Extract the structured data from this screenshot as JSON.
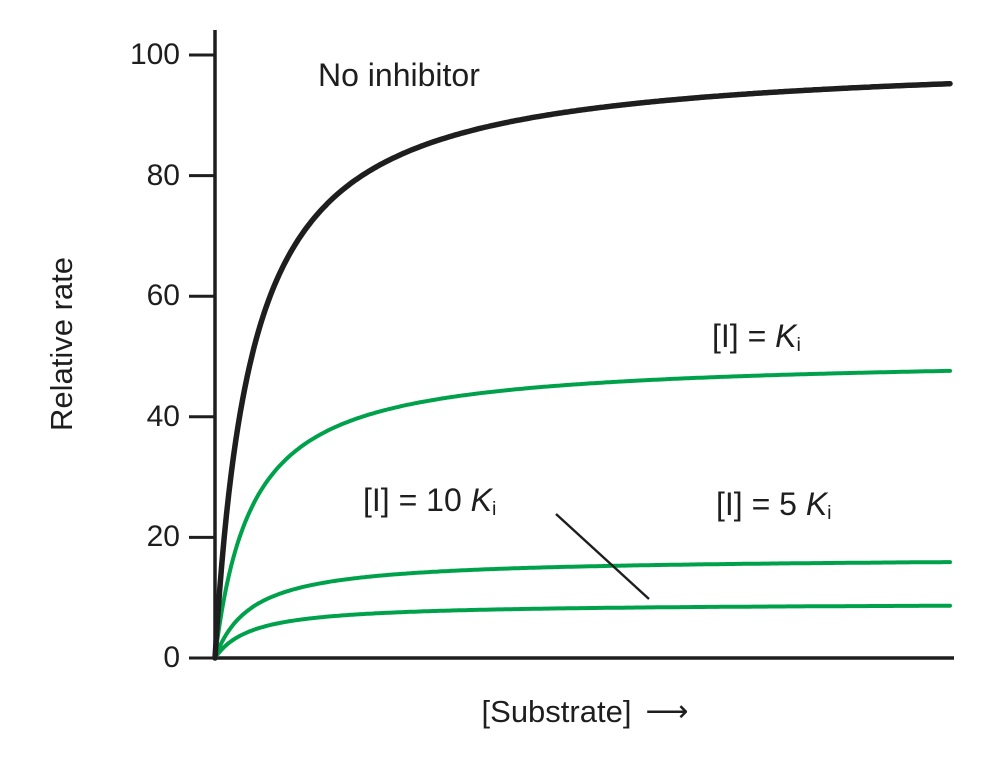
{
  "figure": {
    "background": "#ffffff",
    "axis_color": "#1e1e1e",
    "green": "#00a14b",
    "black": "#1e1e1e",
    "xlabel_arrow": "⟶"
  },
  "labels": {
    "no_inhibitor": "No inhibitor",
    "ki": {
      "prefix": "[I] = ",
      "sym": "K",
      "sub": "i"
    },
    "ki10": {
      "prefix": "[I] = 10 ",
      "sym": "K",
      "sub": "i"
    },
    "ki5": {
      "prefix": "[I] = 5 ",
      "sym": "K",
      "sub": "i"
    }
  },
  "chart_data": {
    "type": "line",
    "xlabel": "[Substrate]",
    "ylabel": "Relative rate",
    "ylim": [
      0,
      100
    ],
    "y_ticks": [
      0,
      20,
      40,
      60,
      80,
      100
    ],
    "x_axis": "unlabeled substrate-concentration axis, 0 to ~20 Km",
    "x_range_km": [
      0,
      20
    ],
    "note": "All curves share the same Km; inhibitor lowers Vmax (noncompetitive inhibition). v = Vmax*S/(Km+S).",
    "legend_position": "labels drawn next to curves",
    "grid": false,
    "series": [
      {
        "id": "no-inhibitor",
        "name": "No inhibitor",
        "color": "#1e1e1e",
        "lw": 5.5,
        "vmax": 100,
        "km": 1,
        "sample_x_km": [
          0,
          0.25,
          0.5,
          1,
          2,
          3,
          5,
          8,
          12,
          16,
          20
        ],
        "sample_y": [
          0,
          20,
          33.3,
          50,
          66.7,
          75,
          83.3,
          88.9,
          92.3,
          94.1,
          95.2
        ]
      },
      {
        "id": "ki",
        "name": "[I] = Ki",
        "color": "#00a14b",
        "lw": 4,
        "vmax": 50,
        "km": 1,
        "sample_x_km": [
          0,
          0.25,
          0.5,
          1,
          2,
          3,
          5,
          8,
          12,
          16,
          20
        ],
        "sample_y": [
          0,
          10,
          16.7,
          25,
          33.3,
          37.5,
          41.7,
          44.4,
          46.2,
          47.1,
          47.6
        ]
      },
      {
        "id": "5ki",
        "name": "[I] = 5 Ki",
        "color": "#00a14b",
        "lw": 4,
        "vmax": 16.7,
        "km": 1,
        "sample_x_km": [
          0,
          0.25,
          0.5,
          1,
          2,
          3,
          5,
          8,
          12,
          16,
          20
        ],
        "sample_y": [
          0,
          3.3,
          5.6,
          8.3,
          11.1,
          12.5,
          13.9,
          14.8,
          15.4,
          15.7,
          15.9
        ]
      },
      {
        "id": "10ki",
        "name": "[I] = 10 Ki",
        "color": "#00a14b",
        "lw": 4,
        "vmax": 9.1,
        "km": 1,
        "sample_x_km": [
          0,
          0.25,
          0.5,
          1,
          2,
          3,
          5,
          8,
          12,
          16,
          20
        ],
        "sample_y": [
          0,
          1.8,
          3.0,
          4.5,
          6.1,
          6.8,
          7.6,
          8.1,
          8.4,
          8.6,
          8.7
        ]
      }
    ]
  }
}
